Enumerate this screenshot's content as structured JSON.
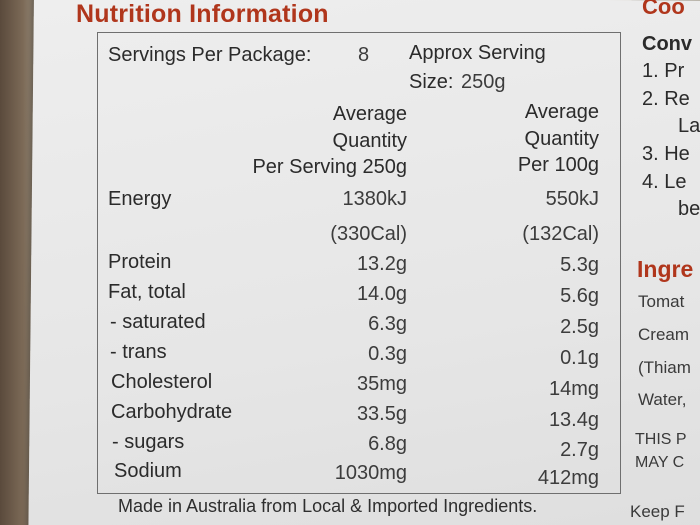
{
  "title": "Nutrition Information",
  "servings": {
    "per_package_label": "Servings Per Package:",
    "per_package_value": "8",
    "approx_label_line1": "Approx Serving",
    "approx_label_line2_prefix": "Size:",
    "approx_value": "250g"
  },
  "headers": {
    "serving": [
      "Average",
      "Quantity",
      "Per Serving 250g"
    ],
    "per100": [
      "Average",
      "Quantity",
      "Per 100g"
    ]
  },
  "rows": [
    {
      "name": "Energy",
      "serving": "1380kJ",
      "per100": "550kJ"
    },
    {
      "name": "",
      "serving": "(330Cal)",
      "per100": "(132Cal)"
    },
    {
      "name": "Protein",
      "serving": "13.2g",
      "per100": "5.3g"
    },
    {
      "name": "Fat, total",
      "serving": "14.0g",
      "per100": "5.6g"
    },
    {
      "name": "- saturated",
      "serving": "6.3g",
      "per100": "2.5g"
    },
    {
      "name": "- trans",
      "serving": "0.3g",
      "per100": "0.1g"
    },
    {
      "name": "Cholesterol",
      "serving": "35mg",
      "per100": "14mg"
    },
    {
      "name": "Carbohydrate",
      "serving": "33.5g",
      "per100": "13.4g"
    },
    {
      "name": "- sugars",
      "serving": "6.8g",
      "per100": "2.7g"
    },
    {
      "name": "Sodium",
      "serving": "1030mg",
      "per100": "412mg"
    }
  ],
  "footer": "Made in Australia from Local & Imported Ingredients.",
  "right_panel": {
    "heading_top": "Coo",
    "subheading": "Conv",
    "steps": [
      "1. Pr",
      "2. Re",
      "La",
      "3. He",
      "4. Le",
      "be"
    ],
    "ingredients_heading": "Ingre",
    "ingredients": [
      "Tomat",
      "Cream",
      "(Thiam",
      "Water,"
    ],
    "notice": [
      "THIS P",
      "MAY C"
    ],
    "keep": "Keep F"
  },
  "colors": {
    "accent_red": "#b0361c",
    "card": "#e8e8e8",
    "text": "#2b2b2b"
  }
}
